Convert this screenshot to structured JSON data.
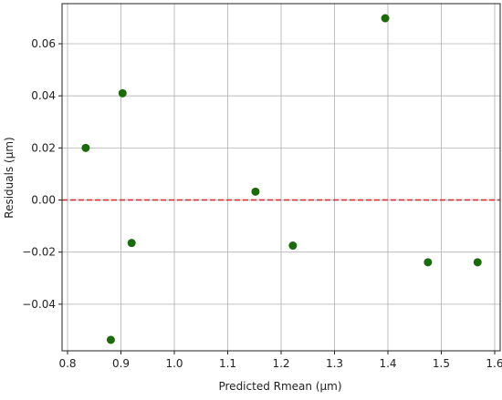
{
  "chart_data": {
    "type": "scatter",
    "x_label": "Predicted Rmean (µm)",
    "y_label": "Residuals (µm)",
    "x": [
      0.834,
      0.903,
      0.881,
      0.92,
      1.152,
      1.222,
      1.395,
      1.475,
      1.568
    ],
    "values": [
      0.02,
      0.041,
      -0.0537,
      -0.0165,
      0.0032,
      -0.0175,
      0.0698,
      -0.0239,
      -0.0239
    ],
    "color": "#1b6b0a",
    "xlim": [
      0.7897,
      1.6103
    ],
    "ylim": [
      -0.0579,
      0.0754
    ],
    "xticks": [
      0.8,
      0.9,
      {
        "value": 1.0,
        "label": "1.0"
      },
      1.1,
      1.2,
      1.3,
      1.4,
      1.5,
      1.6
    ],
    "yticks": [
      {
        "value": -0.04,
        "label": "−0.04"
      },
      {
        "value": -0.02,
        "label": "−0.02"
      },
      {
        "value": 0,
        "label": "0.00"
      },
      {
        "value": 0.02,
        "label": "0.02"
      },
      {
        "value": 0.04,
        "label": "0.04"
      },
      {
        "value": 0.06,
        "label": "0.06"
      }
    ],
    "grid": true,
    "hline": {
      "value": 0,
      "color": "#d62728",
      "style": "dashed"
    }
  }
}
